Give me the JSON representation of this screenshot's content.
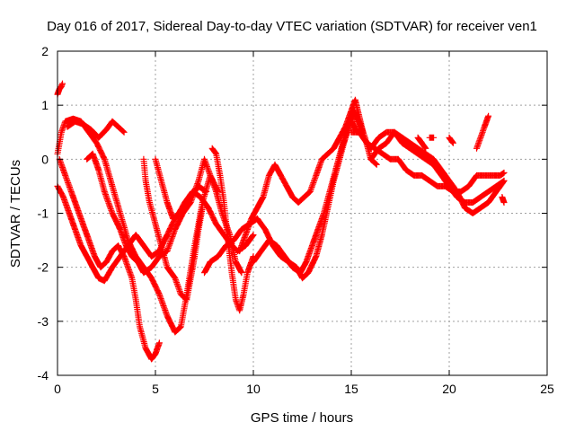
{
  "chart_data": {
    "type": "scatter",
    "title": "Day 016 of 2017, Sidereal Day-to-day VTEC variation (SDTVAR) for receiver ven1",
    "xlabel": "GPS time / hours",
    "ylabel": "SDTVAR / TECUs",
    "xlim": [
      0,
      25
    ],
    "ylim": [
      -4,
      2
    ],
    "xticks": [
      0,
      5,
      10,
      15,
      20,
      25
    ],
    "yticks": [
      -4,
      -3,
      -2,
      -1,
      0,
      1,
      2
    ],
    "grid": true,
    "marker": "+",
    "color": "#ff0000",
    "series": [
      {
        "points": [
          [
            0.0,
            1.2
          ],
          [
            0.1,
            1.3
          ],
          [
            0.2,
            1.35
          ],
          [
            0.25,
            1.4
          ]
        ]
      },
      {
        "points": [
          [
            0.0,
            0.1
          ],
          [
            0.2,
            0.5
          ],
          [
            0.4,
            0.7
          ],
          [
            0.8,
            0.75
          ],
          [
            1.2,
            0.7
          ],
          [
            1.6,
            0.5
          ],
          [
            2.0,
            0.3
          ],
          [
            2.4,
            0.0
          ],
          [
            2.8,
            -0.5
          ],
          [
            3.2,
            -1.0
          ],
          [
            3.6,
            -1.5
          ],
          [
            4.0,
            -1.8
          ],
          [
            4.4,
            -2.0
          ],
          [
            4.8,
            -2.2
          ],
          [
            5.2,
            -2.5
          ],
          [
            5.6,
            -2.9
          ],
          [
            6.0,
            -3.2
          ],
          [
            6.3,
            -3.1
          ],
          [
            6.6,
            -2.5
          ],
          [
            7.0,
            -1.6
          ],
          [
            7.4,
            -0.8
          ],
          [
            7.8,
            -0.3
          ],
          [
            8.2,
            -0.6
          ]
        ]
      },
      {
        "points": [
          [
            0.5,
            0.6
          ],
          [
            0.9,
            0.7
          ],
          [
            1.3,
            0.65
          ],
          [
            1.7,
            0.55
          ],
          [
            2.1,
            0.4
          ],
          [
            2.5,
            0.55
          ],
          [
            2.8,
            0.7
          ],
          [
            3.1,
            0.6
          ],
          [
            3.4,
            0.5
          ]
        ]
      },
      {
        "points": [
          [
            0.0,
            -0.5
          ],
          [
            0.3,
            -0.7
          ],
          [
            0.6,
            -1.0
          ],
          [
            0.9,
            -1.3
          ],
          [
            1.2,
            -1.6
          ],
          [
            1.5,
            -1.8
          ],
          [
            1.8,
            -2.0
          ],
          [
            2.1,
            -2.2
          ],
          [
            2.4,
            -2.25
          ],
          [
            2.8,
            -2.0
          ],
          [
            3.2,
            -1.8
          ],
          [
            3.6,
            -1.6
          ],
          [
            4.0,
            -1.4
          ],
          [
            4.4,
            -1.6
          ],
          [
            4.8,
            -1.8
          ],
          [
            5.2,
            -1.7
          ],
          [
            5.6,
            -1.4
          ],
          [
            6.0,
            -1.1
          ],
          [
            6.4,
            -0.9
          ],
          [
            6.8,
            -0.7
          ],
          [
            7.2,
            -0.5
          ],
          [
            7.6,
            -0.6
          ]
        ]
      },
      {
        "points": [
          [
            0.1,
            0.0
          ],
          [
            0.4,
            -0.3
          ],
          [
            0.7,
            -0.6
          ],
          [
            1.0,
            -0.9
          ],
          [
            1.3,
            -1.2
          ],
          [
            1.6,
            -1.5
          ],
          [
            1.9,
            -1.8
          ],
          [
            2.2,
            -2.0
          ],
          [
            2.5,
            -1.9
          ],
          [
            2.8,
            -1.7
          ],
          [
            3.1,
            -1.6
          ],
          [
            3.4,
            -1.8
          ],
          [
            3.8,
            -2.2
          ],
          [
            4.0,
            -2.6
          ],
          [
            4.2,
            -3.1
          ],
          [
            4.5,
            -3.5
          ],
          [
            4.8,
            -3.7
          ],
          [
            5.0,
            -3.6
          ],
          [
            5.2,
            -3.4
          ]
        ]
      },
      {
        "points": [
          [
            1.5,
            0.0
          ],
          [
            1.8,
            0.1
          ],
          [
            2.1,
            -0.2
          ],
          [
            2.4,
            -0.6
          ],
          [
            2.8,
            -1.0
          ],
          [
            3.2,
            -1.3
          ],
          [
            3.5,
            -1.6
          ],
          [
            3.8,
            -1.8
          ],
          [
            4.1,
            -1.9
          ],
          [
            4.4,
            -2.1
          ],
          [
            4.8,
            -2.0
          ],
          [
            5.2,
            -1.8
          ],
          [
            5.6,
            -1.7
          ],
          [
            6.0,
            -1.3
          ],
          [
            6.4,
            -1.0
          ],
          [
            6.8,
            -0.8
          ],
          [
            7.2,
            -0.4
          ],
          [
            7.5,
            0.0
          ],
          [
            7.8,
            -0.3
          ],
          [
            8.1,
            -0.6
          ],
          [
            8.4,
            -1.0
          ],
          [
            8.8,
            -1.4
          ],
          [
            9.1,
            -1.9
          ],
          [
            9.4,
            -2.1
          ]
        ]
      },
      {
        "points": [
          [
            4.4,
            0.0
          ],
          [
            4.5,
            -0.4
          ],
          [
            4.7,
            -0.8
          ],
          [
            5.0,
            -1.2
          ],
          [
            5.3,
            -1.6
          ],
          [
            5.6,
            -2.0
          ],
          [
            6.0,
            -2.2
          ],
          [
            6.3,
            -2.5
          ],
          [
            6.6,
            -2.6
          ],
          [
            6.8,
            -2.2
          ],
          [
            7.0,
            -1.8
          ],
          [
            7.2,
            -1.3
          ],
          [
            7.4,
            -0.9
          ]
        ]
      },
      {
        "points": [
          [
            5.0,
            0.0
          ],
          [
            5.3,
            -0.4
          ],
          [
            5.6,
            -0.8
          ],
          [
            5.9,
            -1.1
          ],
          [
            6.2,
            -1.0
          ],
          [
            6.5,
            -0.8
          ],
          [
            6.9,
            -0.6
          ],
          [
            7.3,
            -0.7
          ],
          [
            7.7,
            -0.9
          ],
          [
            8.1,
            -1.2
          ],
          [
            8.5,
            -1.4
          ],
          [
            8.9,
            -1.6
          ],
          [
            9.2,
            -1.7
          ],
          [
            9.6,
            -1.6
          ],
          [
            10.0,
            -1.4
          ]
        ]
      },
      {
        "points": [
          [
            7.9,
            0.2
          ],
          [
            8.1,
            0.1
          ],
          [
            8.3,
            -0.3
          ],
          [
            8.5,
            -0.8
          ],
          [
            8.7,
            -1.5
          ],
          [
            8.9,
            -2.1
          ],
          [
            9.1,
            -2.6
          ],
          [
            9.3,
            -2.8
          ],
          [
            9.5,
            -2.5
          ],
          [
            9.7,
            -2.1
          ],
          [
            10.0,
            -1.8
          ]
        ]
      },
      {
        "points": [
          [
            7.5,
            -2.1
          ],
          [
            7.8,
            -1.9
          ],
          [
            8.2,
            -1.8
          ],
          [
            8.6,
            -1.6
          ],
          [
            9.0,
            -1.5
          ],
          [
            9.4,
            -1.3
          ],
          [
            9.8,
            -1.2
          ],
          [
            10.2,
            -1.1
          ],
          [
            10.6,
            -1.3
          ],
          [
            11.0,
            -1.6
          ],
          [
            11.4,
            -1.8
          ],
          [
            11.8,
            -1.9
          ],
          [
            12.2,
            -2.0
          ],
          [
            12.5,
            -2.2
          ],
          [
            12.8,
            -2.1
          ],
          [
            13.2,
            -1.8
          ],
          [
            13.5,
            -1.4
          ],
          [
            13.8,
            -0.9
          ],
          [
            14.1,
            -0.4
          ],
          [
            14.4,
            0.0
          ],
          [
            14.7,
            0.4
          ],
          [
            15.0,
            0.7
          ],
          [
            15.3,
            0.5
          ]
        ]
      },
      {
        "points": [
          [
            9.3,
            -1.7
          ],
          [
            9.6,
            -1.4
          ],
          [
            9.9,
            -1.1
          ],
          [
            10.2,
            -0.9
          ],
          [
            10.5,
            -0.7
          ],
          [
            10.8,
            -0.3
          ],
          [
            11.1,
            -0.1
          ],
          [
            11.4,
            -0.3
          ],
          [
            11.7,
            -0.5
          ],
          [
            12.0,
            -0.7
          ],
          [
            12.3,
            -0.8
          ],
          [
            12.6,
            -0.7
          ],
          [
            12.9,
            -0.6
          ],
          [
            13.2,
            -0.3
          ],
          [
            13.5,
            0.0
          ],
          [
            13.8,
            0.1
          ],
          [
            14.1,
            0.2
          ],
          [
            14.4,
            0.4
          ],
          [
            14.7,
            0.6
          ],
          [
            15.0,
            0.9
          ],
          [
            15.2,
            1.1
          ],
          [
            15.4,
            0.8
          ],
          [
            15.6,
            0.5
          ]
        ]
      },
      {
        "points": [
          [
            10.0,
            -1.9
          ],
          [
            10.4,
            -1.7
          ],
          [
            10.8,
            -1.5
          ],
          [
            11.2,
            -1.6
          ],
          [
            11.6,
            -1.8
          ],
          [
            12.0,
            -2.0
          ],
          [
            12.4,
            -2.1
          ],
          [
            12.7,
            -1.9
          ],
          [
            13.0,
            -1.6
          ],
          [
            13.3,
            -1.3
          ],
          [
            13.6,
            -1.0
          ],
          [
            13.9,
            -0.6
          ],
          [
            14.2,
            -0.2
          ],
          [
            14.5,
            0.2
          ],
          [
            14.8,
            0.5
          ],
          [
            15.1,
            0.8
          ]
        ]
      },
      {
        "points": [
          [
            15.0,
            0.5
          ],
          [
            15.4,
            0.5
          ],
          [
            15.8,
            0.3
          ],
          [
            16.2,
            0.2
          ],
          [
            16.6,
            0.1
          ],
          [
            17.0,
            0.0
          ],
          [
            17.4,
            0.0
          ],
          [
            17.8,
            -0.2
          ],
          [
            18.2,
            -0.3
          ],
          [
            18.6,
            -0.3
          ],
          [
            19.0,
            -0.4
          ],
          [
            19.4,
            -0.5
          ],
          [
            19.8,
            -0.5
          ],
          [
            20.2,
            -0.6
          ],
          [
            20.6,
            -0.6
          ],
          [
            21.0,
            -0.5
          ],
          [
            21.4,
            -0.3
          ],
          [
            21.8,
            -0.3
          ],
          [
            22.2,
            -0.3
          ],
          [
            22.6,
            -0.3
          ],
          [
            22.8,
            -0.25
          ]
        ]
      },
      {
        "points": [
          [
            15.2,
            0.8
          ],
          [
            15.6,
            0.4
          ],
          [
            16.0,
            0.2
          ],
          [
            16.4,
            0.4
          ],
          [
            16.8,
            0.5
          ],
          [
            17.2,
            0.5
          ],
          [
            17.6,
            0.3
          ],
          [
            18.0,
            0.2
          ],
          [
            18.4,
            0.1
          ],
          [
            18.8,
            0.0
          ],
          [
            19.2,
            -0.1
          ],
          [
            19.6,
            -0.3
          ],
          [
            20.0,
            -0.5
          ],
          [
            20.4,
            -0.7
          ],
          [
            20.8,
            -0.8
          ],
          [
            21.2,
            -0.8
          ],
          [
            21.6,
            -0.7
          ],
          [
            22.0,
            -0.6
          ],
          [
            22.4,
            -0.5
          ],
          [
            22.8,
            -0.4
          ]
        ]
      },
      {
        "points": [
          [
            16.0,
            0.0
          ],
          [
            16.4,
            0.2
          ],
          [
            16.8,
            0.3
          ],
          [
            17.2,
            0.5
          ],
          [
            17.6,
            0.4
          ],
          [
            18.0,
            0.3
          ],
          [
            18.4,
            0.2
          ],
          [
            18.8,
            0.1
          ],
          [
            19.2,
            0.0
          ],
          [
            19.6,
            -0.2
          ],
          [
            20.0,
            -0.4
          ],
          [
            20.4,
            -0.6
          ],
          [
            20.8,
            -0.9
          ],
          [
            21.2,
            -1.0
          ],
          [
            21.6,
            -0.9
          ],
          [
            22.0,
            -0.8
          ],
          [
            22.4,
            -0.6
          ],
          [
            22.8,
            -0.4
          ]
        ]
      },
      {
        "points": [
          [
            14.5,
            0.2
          ],
          [
            14.8,
            0.6
          ],
          [
            15.1,
            0.9
          ],
          [
            15.4,
            0.7
          ],
          [
            15.7,
            0.4
          ],
          [
            16.0,
            0.0
          ],
          [
            16.3,
            -0.1
          ]
        ]
      },
      {
        "points": [
          [
            18.4,
            0.4
          ],
          [
            18.6,
            0.3
          ],
          [
            18.8,
            0.2
          ]
        ]
      },
      {
        "points": [
          [
            19.0,
            0.4
          ],
          [
            19.2,
            0.4
          ]
        ]
      },
      {
        "points": [
          [
            20.0,
            0.4
          ],
          [
            20.2,
            0.3
          ]
        ]
      },
      {
        "points": [
          [
            21.4,
            0.2
          ],
          [
            21.6,
            0.4
          ],
          [
            21.8,
            0.6
          ],
          [
            22.0,
            0.8
          ]
        ]
      },
      {
        "points": [
          [
            22.7,
            -0.7
          ],
          [
            22.8,
            -0.8
          ]
        ]
      }
    ]
  }
}
